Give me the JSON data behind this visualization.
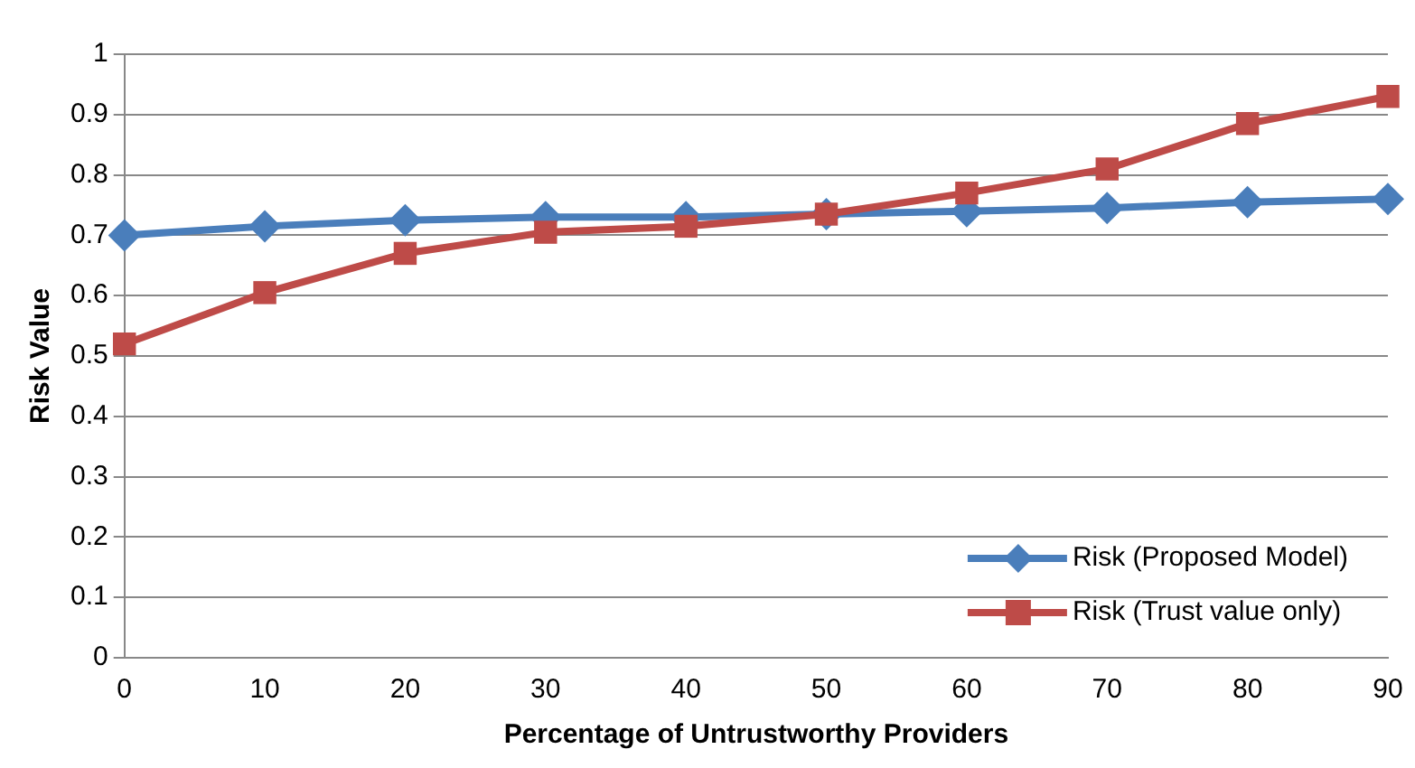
{
  "chart_data": {
    "type": "line",
    "xlabel": "Percentage of Untrustworthy Providers",
    "ylabel": "Risk Value",
    "categories": [
      "0",
      "10",
      "20",
      "30",
      "40",
      "50",
      "60",
      "70",
      "80",
      "90"
    ],
    "series": [
      {
        "name": "Risk (Proposed Model)",
        "color": "#4a7ebb",
        "marker": "diamond",
        "values": [
          0.7,
          0.715,
          0.725,
          0.73,
          0.73,
          0.735,
          0.74,
          0.745,
          0.755,
          0.76
        ]
      },
      {
        "name": "Risk (Trust value only)",
        "color": "#be4b48",
        "marker": "square",
        "values": [
          0.52,
          0.605,
          0.67,
          0.705,
          0.715,
          0.735,
          0.77,
          0.81,
          0.885,
          0.93
        ]
      }
    ],
    "ylim": [
      0,
      1
    ],
    "yticks": [
      0,
      0.1,
      0.2,
      0.3,
      0.4,
      0.5,
      0.6,
      0.7,
      0.8,
      0.9,
      1
    ],
    "grid": "y",
    "legend": "bottom right"
  }
}
